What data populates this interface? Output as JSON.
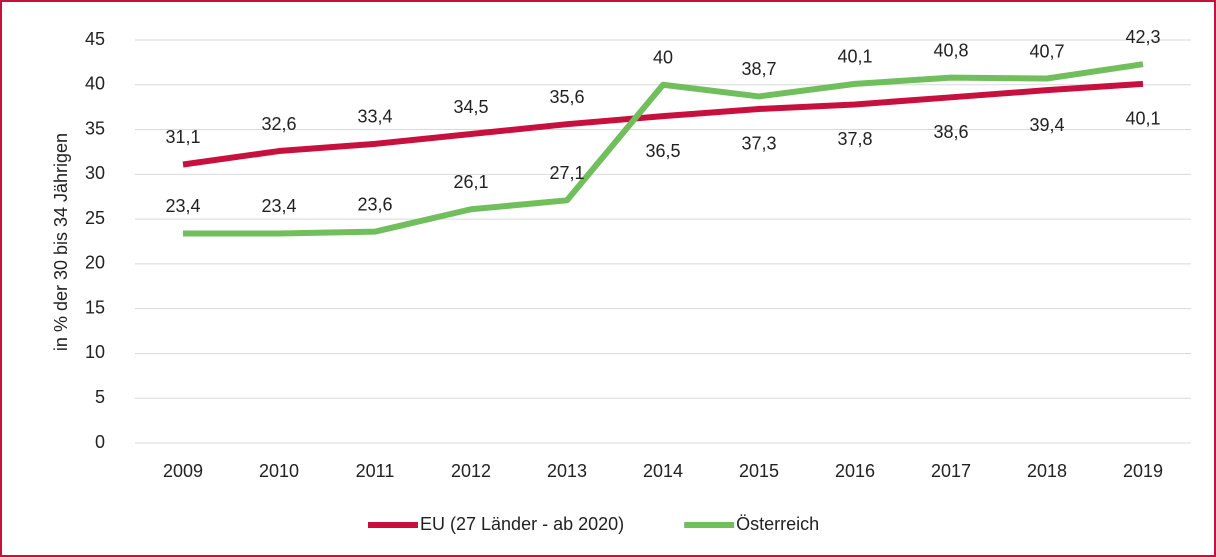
{
  "chart_data": {
    "type": "line",
    "y_axis_label": "in % der 30 bis 34 Jährigen",
    "categories": [
      "2009",
      "2010",
      "2011",
      "2012",
      "2013",
      "2014",
      "2015",
      "2016",
      "2017",
      "2018",
      "2019"
    ],
    "series": [
      {
        "name": "EU (27 Länder - ab 2020)",
        "color": "#c8103e",
        "values": [
          31.1,
          32.6,
          33.4,
          34.5,
          35.6,
          36.5,
          37.3,
          37.8,
          38.6,
          39.4,
          40.1
        ],
        "value_labels": [
          "31,1",
          "32,6",
          "33,4",
          "34,5",
          "35,6",
          "36,5",
          "37,3",
          "37,8",
          "38,6",
          "39,4",
          "40,1"
        ]
      },
      {
        "name": "Österreich",
        "color": "#70bf5c",
        "values": [
          23.4,
          23.4,
          23.6,
          26.1,
          27.1,
          40,
          38.7,
          40.1,
          40.8,
          40.7,
          42.3
        ],
        "value_labels": [
          "23,4",
          "23,4",
          "23,6",
          "26,1",
          "27,1",
          "40",
          "38,7",
          "40,1",
          "40,8",
          "40,7",
          "42,3"
        ]
      }
    ],
    "ylim": [
      0,
      45
    ],
    "yticks": [
      0,
      5,
      10,
      15,
      20,
      25,
      30,
      35,
      40,
      45
    ],
    "grid": true,
    "legend": "bottom"
  }
}
